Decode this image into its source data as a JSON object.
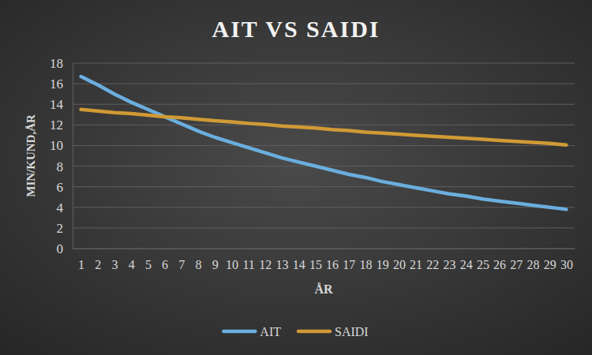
{
  "chart_data": {
    "type": "line",
    "title": "AIT VS SAIDI",
    "x_label": "ÅR",
    "y_label": "MIN/KUND,ÅR",
    "categories": [
      "1",
      "2",
      "3",
      "4",
      "5",
      "6",
      "7",
      "8",
      "9",
      "10",
      "11",
      "12",
      "13",
      "14",
      "15",
      "16",
      "17",
      "18",
      "19",
      "20",
      "21",
      "22",
      "23",
      "24",
      "25",
      "26",
      "27",
      "28",
      "29",
      "30"
    ],
    "series": [
      {
        "name": "AIT",
        "color": "#6aaede",
        "values": [
          16.7,
          15.9,
          15.0,
          14.2,
          13.5,
          12.8,
          12.1,
          11.4,
          10.8,
          10.3,
          9.8,
          9.3,
          8.8,
          8.4,
          8.0,
          7.6,
          7.2,
          6.9,
          6.5,
          6.2,
          5.9,
          5.6,
          5.3,
          5.1,
          4.8,
          4.6,
          4.4,
          4.2,
          4.0,
          3.8
        ]
      },
      {
        "name": "SAIDI",
        "color": "#d09a35",
        "values": [
          13.5,
          13.35,
          13.2,
          13.1,
          12.95,
          12.8,
          12.7,
          12.55,
          12.4,
          12.3,
          12.15,
          12.05,
          11.9,
          11.8,
          11.7,
          11.55,
          11.45,
          11.3,
          11.2,
          11.1,
          11.0,
          10.9,
          10.8,
          10.7,
          10.6,
          10.5,
          10.4,
          10.3,
          10.2,
          10.05
        ]
      }
    ],
    "ylim": [
      0,
      18
    ],
    "yticks": [
      0,
      2,
      4,
      6,
      8,
      10,
      12,
      14,
      16,
      18
    ],
    "grid": true,
    "legend": "bottom"
  }
}
